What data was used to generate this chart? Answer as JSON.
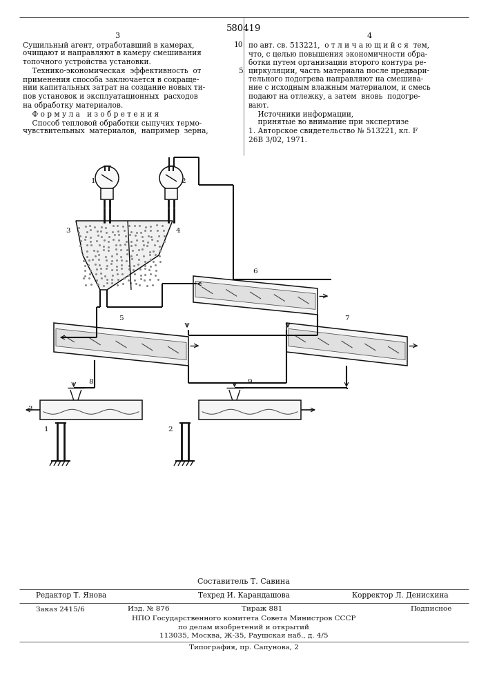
{
  "patent_number": "580419",
  "page_left": "3",
  "page_right": "4",
  "col_left_text": [
    "Сушильный агент, отработавший в камерах,",
    "очищают и направляют в камеру смешивания",
    "топочного устройства установки.",
    "    Технико-экономическая  эффективность  от",
    "применения способа заключается в сокраще-",
    "нии капитальных затрат на создание новых ти-",
    "пов установок и эксплуатационных  расходов",
    "на обработку материалов.",
    "    Ф о р м у л а   и з о б р е т е н и я",
    "    Способ тепловой обработки сыпучих термо-",
    "чувствительных  материалов,  например  зерна,"
  ],
  "col_right_text": [
    "по авт. св. 513221,  о т л и ч а ю щ и й с я  тем,",
    "что, с целью повышения экономичности обра-",
    "ботки путем организации второго контура ре-",
    "циркуляции, часть материала после предвари-",
    "тельного подогрева направляют на смешива-",
    "ние с исходным влажным материалом, и смесь",
    "подают на отлежку, а затем  вновь  подогре-",
    "вают.",
    "    Источники информации,",
    "    принятые во внимание при экспертизе",
    "1. Авторское свидетельство № 513221, кл. F",
    "26В 3/02, 1971."
  ],
  "line_number_5": "5",
  "line_number_10": "10",
  "composer_line": "Составитель Т. Савина",
  "editor_label": "Редактор",
  "editor_name": "Т. Янова",
  "techred_label": "Техред",
  "techred_name": "И. Карандашова",
  "corrector_label": "Корректор",
  "corrector_name": "Л. Денискина",
  "order_label": "Заказ 2415/6",
  "edition_label": "Изд. № 876",
  "circulation_label": "Тираж 881",
  "subscription_label": "Подписное",
  "org_line1": "НПО Государственного комитета Совета Министров СССР",
  "org_line2": "по делам изобретений и открытий",
  "org_line3": "113035, Москва, Ж-35, Раушская наб., д. 4/5",
  "printing_line": "Типография, пр. Сапунова, 2",
  "bg_color": "#ffffff"
}
